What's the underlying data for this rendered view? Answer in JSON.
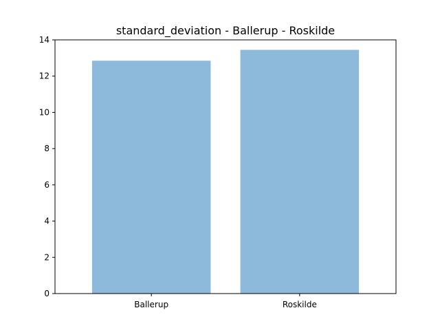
{
  "chart_data": {
    "type": "bar",
    "title": "standard_deviation - Ballerup - Roskilde",
    "categories": [
      "Ballerup",
      "Roskilde"
    ],
    "values": [
      12.85,
      13.45
    ],
    "xlabel": "",
    "ylabel": "",
    "ylim": [
      0,
      14
    ],
    "yticks": [
      0,
      2,
      4,
      6,
      8,
      10,
      12,
      14
    ],
    "bar_color": "#8DB9DA",
    "grid": false,
    "legend": "none"
  }
}
